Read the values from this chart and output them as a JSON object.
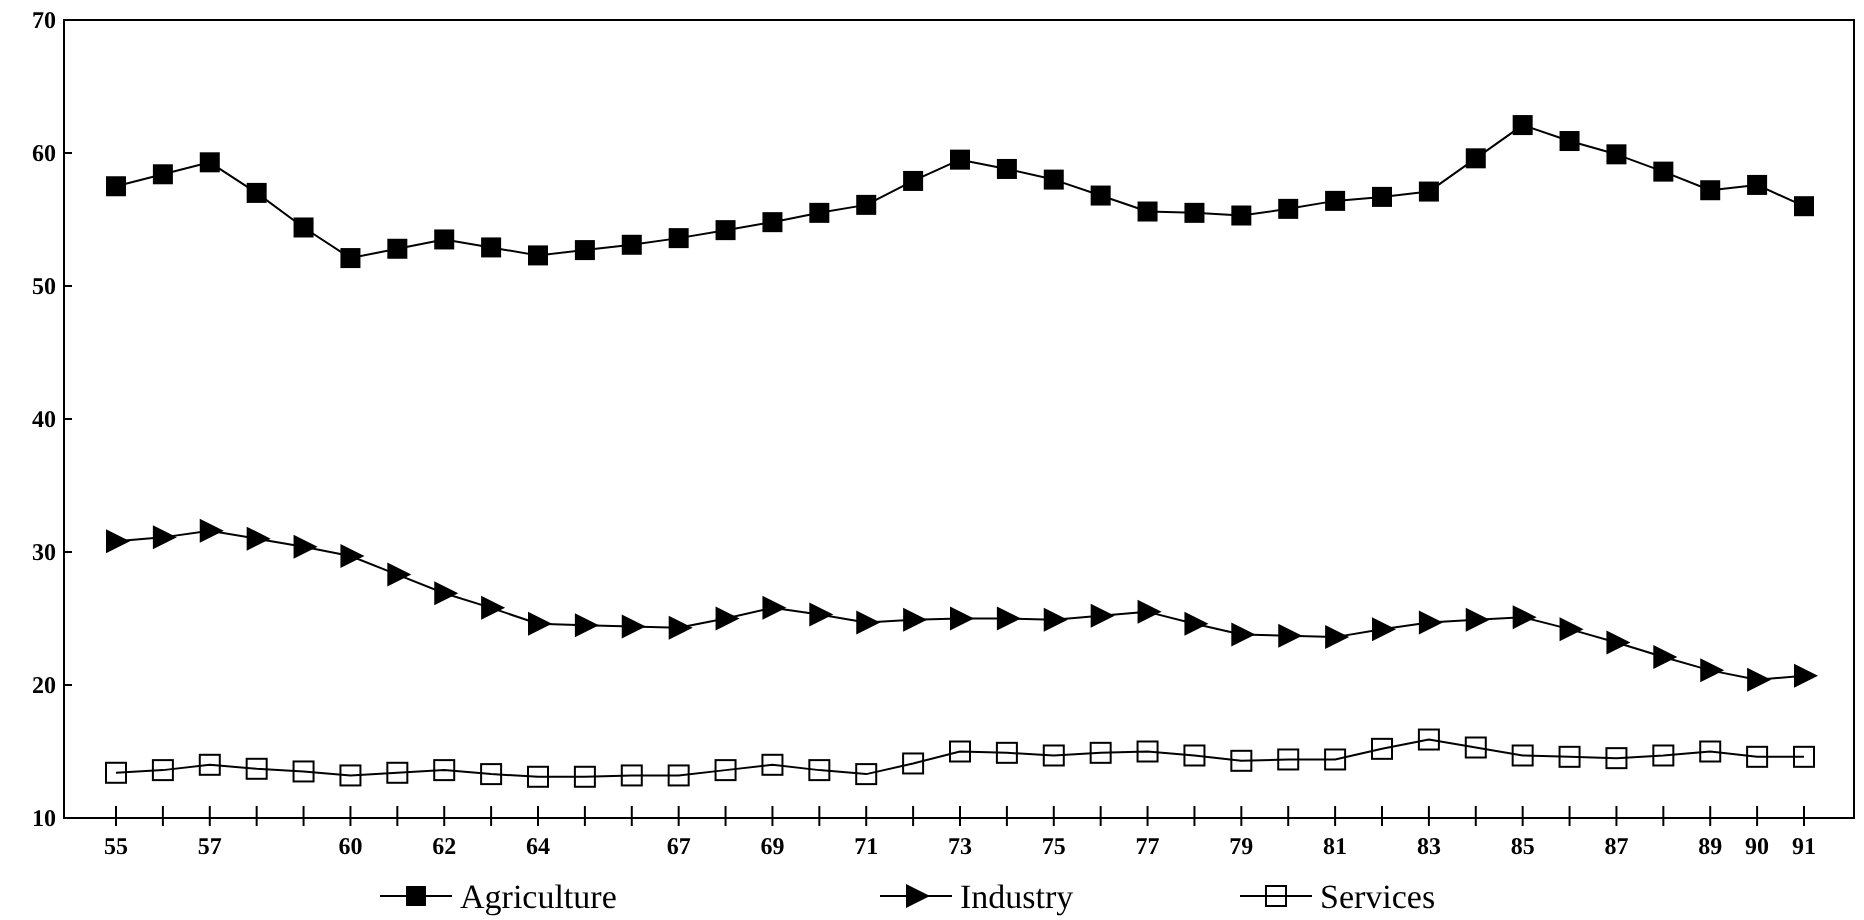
{
  "chart_data": {
    "type": "line",
    "categories": [
      "55",
      null,
      "57",
      null,
      null,
      "60",
      null,
      "62",
      null,
      "64",
      null,
      null,
      "67",
      null,
      "69",
      null,
      "71",
      null,
      "73",
      null,
      "75",
      null,
      "77",
      null,
      "79",
      null,
      "81",
      null,
      "83",
      null,
      "85",
      null,
      "87",
      null,
      "89",
      "90",
      "91"
    ],
    "ylim": [
      10,
      70
    ],
    "yticks": [
      10,
      20,
      30,
      40,
      50,
      60,
      70
    ],
    "grid": false,
    "legend": "bottom",
    "line_style": "solid",
    "series": [
      {
        "name": "Agriculture",
        "color": "#000000",
        "marker": "square",
        "values": [
          57.5,
          58.4,
          59.3,
          57,
          54.4,
          52.1,
          52.8,
          53.5,
          52.9,
          52.3,
          52.7,
          53.1,
          53.6,
          54.2,
          54.8,
          55.5,
          56.1,
          57.9,
          59.5,
          58.8,
          58,
          56.8,
          55.6,
          55.5,
          55.3,
          55.8,
          56.4,
          56.7,
          57.1,
          59.6,
          62.1,
          60.9,
          59.9,
          58.6,
          57.2,
          57.6,
          56
        ]
      },
      {
        "name": "Industry",
        "color": "#000000",
        "marker": "triangle",
        "values": [
          30.8,
          31.1,
          31.6,
          31,
          30.4,
          29.7,
          28.3,
          26.9,
          25.8,
          24.6,
          24.5,
          24.4,
          24.3,
          25,
          25.8,
          25.3,
          24.7,
          24.9,
          25,
          25,
          24.9,
          25.2,
          25.5,
          24.6,
          23.8,
          23.7,
          23.6,
          24.2,
          24.7,
          24.9,
          25.1,
          24.2,
          23.2,
          22.1,
          21.1,
          20.4,
          20.7
        ]
      },
      {
        "name": "Services",
        "color": "#000000",
        "marker": "square-open",
        "values": [
          13.4,
          13.6,
          14,
          13.7,
          13.5,
          13.2,
          13.4,
          13.6,
          13.3,
          13.1,
          13.1,
          13.2,
          13.2,
          13.6,
          14,
          13.6,
          13.3,
          14.1,
          15,
          14.9,
          14.7,
          14.9,
          15,
          14.7,
          14.3,
          14.4,
          14.4,
          15.2,
          15.9,
          15.3,
          14.7,
          14.6,
          14.5,
          14.7,
          15,
          14.6,
          14.6
        ]
      }
    ]
  }
}
